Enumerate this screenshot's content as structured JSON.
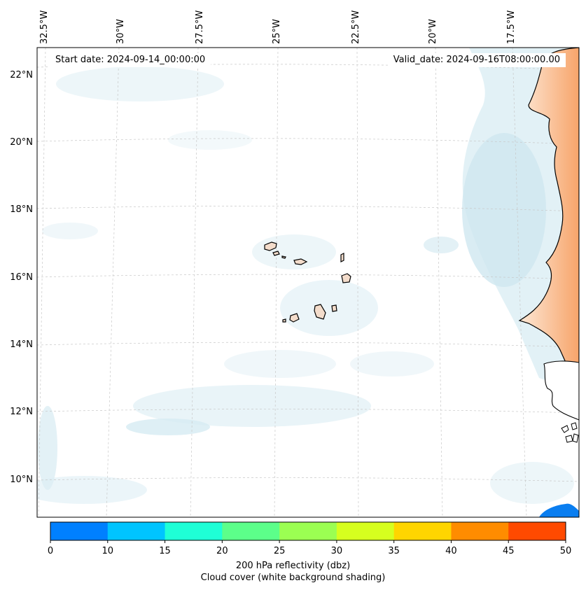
{
  "map": {
    "start_date": "Start date: 2024-09-14_00:00:00",
    "valid_date": "Valid_date: 2024-09-16T08:00:00.00",
    "lon_ticks": [
      "32.5°W",
      "30°W",
      "27.5°W",
      "25°W",
      "22.5°W",
      "20°W",
      "17.5°W"
    ],
    "lat_ticks": [
      "22°N",
      "20°N",
      "18°N",
      "16°N",
      "14°N",
      "12°N",
      "10°N"
    ]
  },
  "colorbar": {
    "ticks": [
      "0",
      "10",
      "15",
      "20",
      "25",
      "30",
      "35",
      "40",
      "45",
      "50"
    ],
    "colors": [
      "#0080ff",
      "#00c4ff",
      "#1fffd6",
      "#5cff8a",
      "#9bff52",
      "#d6ff1f",
      "#ffd500",
      "#ff8c00",
      "#ff4a00"
    ],
    "label_line1": "200 hPa reflectivity (dbz)",
    "label_line2": "Cloud cover (white background shading)"
  }
}
